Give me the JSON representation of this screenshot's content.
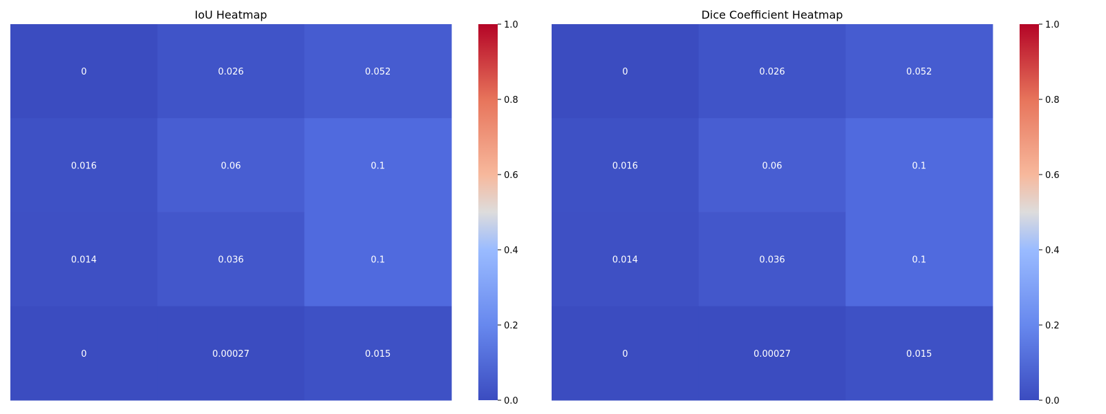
{
  "chart_data": [
    {
      "type": "heatmap",
      "title": "IoU Heatmap",
      "xlabel": "",
      "ylabel": "",
      "colormap": "coolwarm",
      "vmin": 0,
      "vmax": 1,
      "values": [
        [
          0,
          0.026,
          0.052
        ],
        [
          0.016,
          0.06,
          0.1
        ],
        [
          0.014,
          0.036,
          0.1
        ],
        [
          0,
          0.00027,
          0.015
        ]
      ],
      "annotations": [
        [
          "0",
          "0.026",
          "0.052"
        ],
        [
          "0.016",
          "0.06",
          "0.1"
        ],
        [
          "0.014",
          "0.036",
          "0.1"
        ],
        [
          "0",
          "0.00027",
          "0.015"
        ]
      ],
      "colorbar": {
        "ticks": [
          0.0,
          0.2,
          0.4,
          0.6,
          0.8,
          1.0
        ],
        "tick_labels": [
          "0.0",
          "0.2",
          "0.4",
          "0.6",
          "0.8",
          "1.0"
        ]
      }
    },
    {
      "type": "heatmap",
      "title": "Dice Coefficient Heatmap",
      "xlabel": "",
      "ylabel": "",
      "colormap": "coolwarm",
      "vmin": 0,
      "vmax": 1,
      "values": [
        [
          0,
          0.026,
          0.052
        ],
        [
          0.016,
          0.06,
          0.1
        ],
        [
          0.014,
          0.036,
          0.1
        ],
        [
          0,
          0.00027,
          0.015
        ]
      ],
      "annotations": [
        [
          "0",
          "0.026",
          "0.052"
        ],
        [
          "0.016",
          "0.06",
          "0.1"
        ],
        [
          "0.014",
          "0.036",
          "0.1"
        ],
        [
          "0",
          "0.00027",
          "0.015"
        ]
      ],
      "colorbar": {
        "ticks": [
          0.0,
          0.2,
          0.4,
          0.6,
          0.8,
          1.0
        ],
        "tick_labels": [
          "0.0",
          "0.2",
          "0.4",
          "0.6",
          "0.8",
          "1.0"
        ]
      }
    }
  ]
}
